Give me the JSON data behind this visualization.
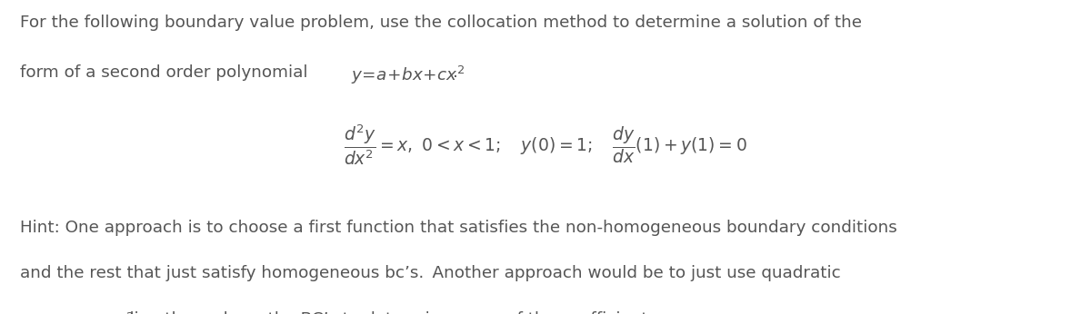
{
  "background_color": "#ffffff",
  "figsize": [
    12.0,
    3.46
  ],
  "dpi": 100,
  "text_color": "#555555",
  "font_size_body": 13.2,
  "font_size_eq": 13.5,
  "line1": "For the following boundary value problem, use the collocation method to determine a solution of the",
  "hint_line1": "Hint: One approach is to choose a first function that satisfies the non-homogeneous boundary conditions",
  "hint_line2": "and the rest that just satisfy homogeneous bc’s. Another approach would be to just use quadratic",
  "hint_line3_a": " directly, and use the BC’s to determine some of the coefficients."
}
